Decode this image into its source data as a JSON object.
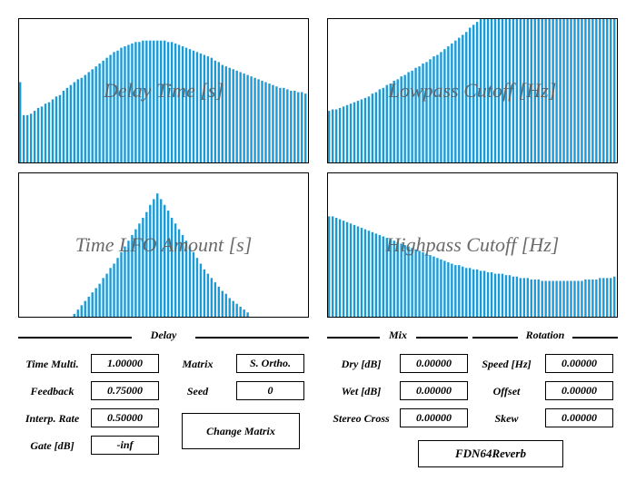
{
  "accent_color": "#1a9ad6",
  "panels": {
    "delay_time": {
      "label": "Delay Time [s]",
      "values": [
        0.56,
        0.33,
        0.33,
        0.34,
        0.36,
        0.38,
        0.39,
        0.41,
        0.42,
        0.44,
        0.46,
        0.47,
        0.5,
        0.52,
        0.54,
        0.56,
        0.58,
        0.59,
        0.61,
        0.63,
        0.65,
        0.67,
        0.69,
        0.71,
        0.73,
        0.75,
        0.77,
        0.78,
        0.8,
        0.81,
        0.82,
        0.83,
        0.84,
        0.84,
        0.85,
        0.85,
        0.85,
        0.85,
        0.85,
        0.85,
        0.85,
        0.84,
        0.84,
        0.83,
        0.82,
        0.81,
        0.8,
        0.79,
        0.78,
        0.77,
        0.76,
        0.75,
        0.74,
        0.73,
        0.71,
        0.7,
        0.68,
        0.67,
        0.66,
        0.65,
        0.64,
        0.63,
        0.62,
        0.61,
        0.6,
        0.59,
        0.58,
        0.57,
        0.56,
        0.55,
        0.54,
        0.53,
        0.52,
        0.52,
        0.51,
        0.5,
        0.5,
        0.49,
        0.49,
        0.48
      ]
    },
    "lowpass_cutoff": {
      "label": "Lowpass Cutoff [Hz]",
      "values": [
        0.36,
        0.37,
        0.37,
        0.38,
        0.39,
        0.4,
        0.41,
        0.42,
        0.43,
        0.44,
        0.45,
        0.46,
        0.48,
        0.49,
        0.51,
        0.52,
        0.54,
        0.55,
        0.57,
        0.58,
        0.6,
        0.61,
        0.63,
        0.64,
        0.66,
        0.67,
        0.69,
        0.7,
        0.72,
        0.74,
        0.75,
        0.77,
        0.79,
        0.81,
        0.83,
        0.85,
        0.87,
        0.89,
        0.91,
        0.94,
        0.96,
        0.98,
        1,
        1,
        1,
        1,
        1,
        1,
        1,
        1,
        1,
        1,
        1,
        1,
        1,
        1,
        1,
        1,
        1,
        1,
        1,
        1,
        1,
        1,
        1,
        1,
        1,
        1,
        1,
        1,
        1,
        1,
        1,
        1,
        1,
        1,
        1,
        1,
        1,
        1
      ]
    },
    "time_lfo_amount": {
      "label": "Time LFO Amount [s]",
      "values": [
        0,
        0,
        0,
        0,
        0,
        0,
        0,
        0,
        0,
        0,
        0,
        0,
        0,
        0,
        0,
        0.02,
        0.05,
        0.08,
        0.11,
        0.14,
        0.17,
        0.2,
        0.23,
        0.27,
        0.3,
        0.34,
        0.37,
        0.41,
        0.45,
        0.49,
        0.53,
        0.57,
        0.61,
        0.65,
        0.69,
        0.73,
        0.78,
        0.82,
        0.86,
        0.82,
        0.78,
        0.74,
        0.69,
        0.65,
        0.61,
        0.57,
        0.53,
        0.49,
        0.45,
        0.41,
        0.37,
        0.33,
        0.3,
        0.27,
        0.24,
        0.21,
        0.18,
        0.16,
        0.13,
        0.11,
        0.09,
        0.07,
        0.05,
        0.03,
        0,
        0,
        0,
        0,
        0,
        0,
        0,
        0,
        0,
        0,
        0,
        0,
        0,
        0,
        0,
        0
      ]
    },
    "highpass_cutoff": {
      "label": "Highpass Cutoff [Hz]",
      "values": [
        0.7,
        0.7,
        0.69,
        0.68,
        0.67,
        0.66,
        0.65,
        0.64,
        0.63,
        0.62,
        0.61,
        0.6,
        0.59,
        0.58,
        0.57,
        0.56,
        0.55,
        0.54,
        0.53,
        0.52,
        0.51,
        0.5,
        0.49,
        0.48,
        0.47,
        0.46,
        0.45,
        0.44,
        0.43,
        0.42,
        0.41,
        0.4,
        0.39,
        0.38,
        0.37,
        0.36,
        0.36,
        0.35,
        0.34,
        0.34,
        0.33,
        0.33,
        0.32,
        0.32,
        0.31,
        0.31,
        0.3,
        0.3,
        0.3,
        0.29,
        0.29,
        0.28,
        0.28,
        0.27,
        0.27,
        0.27,
        0.26,
        0.26,
        0.26,
        0.25,
        0.25,
        0.25,
        0.25,
        0.25,
        0.25,
        0.25,
        0.25,
        0.25,
        0.25,
        0.25,
        0.25,
        0.26,
        0.26,
        0.26,
        0.26,
        0.27,
        0.27,
        0.27,
        0.27,
        0.28
      ]
    }
  },
  "delay": {
    "title": "Delay",
    "time_multi_label": "Time Multi.",
    "time_multi_value": "1.00000",
    "feedback_label": "Feedback",
    "feedback_value": "0.75000",
    "interp_rate_label": "Interp. Rate",
    "interp_rate_value": "0.50000",
    "gate_label": "Gate [dB]",
    "gate_value": "-inf",
    "matrix_label": "Matrix",
    "matrix_value": "S. Ortho.",
    "seed_label": "Seed",
    "seed_value": "0",
    "change_matrix_label": "Change Matrix"
  },
  "mix": {
    "title": "Mix",
    "dry_label": "Dry [dB]",
    "dry_value": "0.00000",
    "wet_label": "Wet [dB]",
    "wet_value": "0.00000",
    "stereo_cross_label": "Stereo Cross",
    "stereo_cross_value": "0.00000"
  },
  "rotation": {
    "title": "Rotation",
    "speed_label": "Speed [Hz]",
    "speed_value": "0.00000",
    "offset_label": "Offset",
    "offset_value": "0.00000",
    "skew_label": "Skew",
    "skew_value": "0.00000"
  },
  "brand": "FDN64Reverb"
}
